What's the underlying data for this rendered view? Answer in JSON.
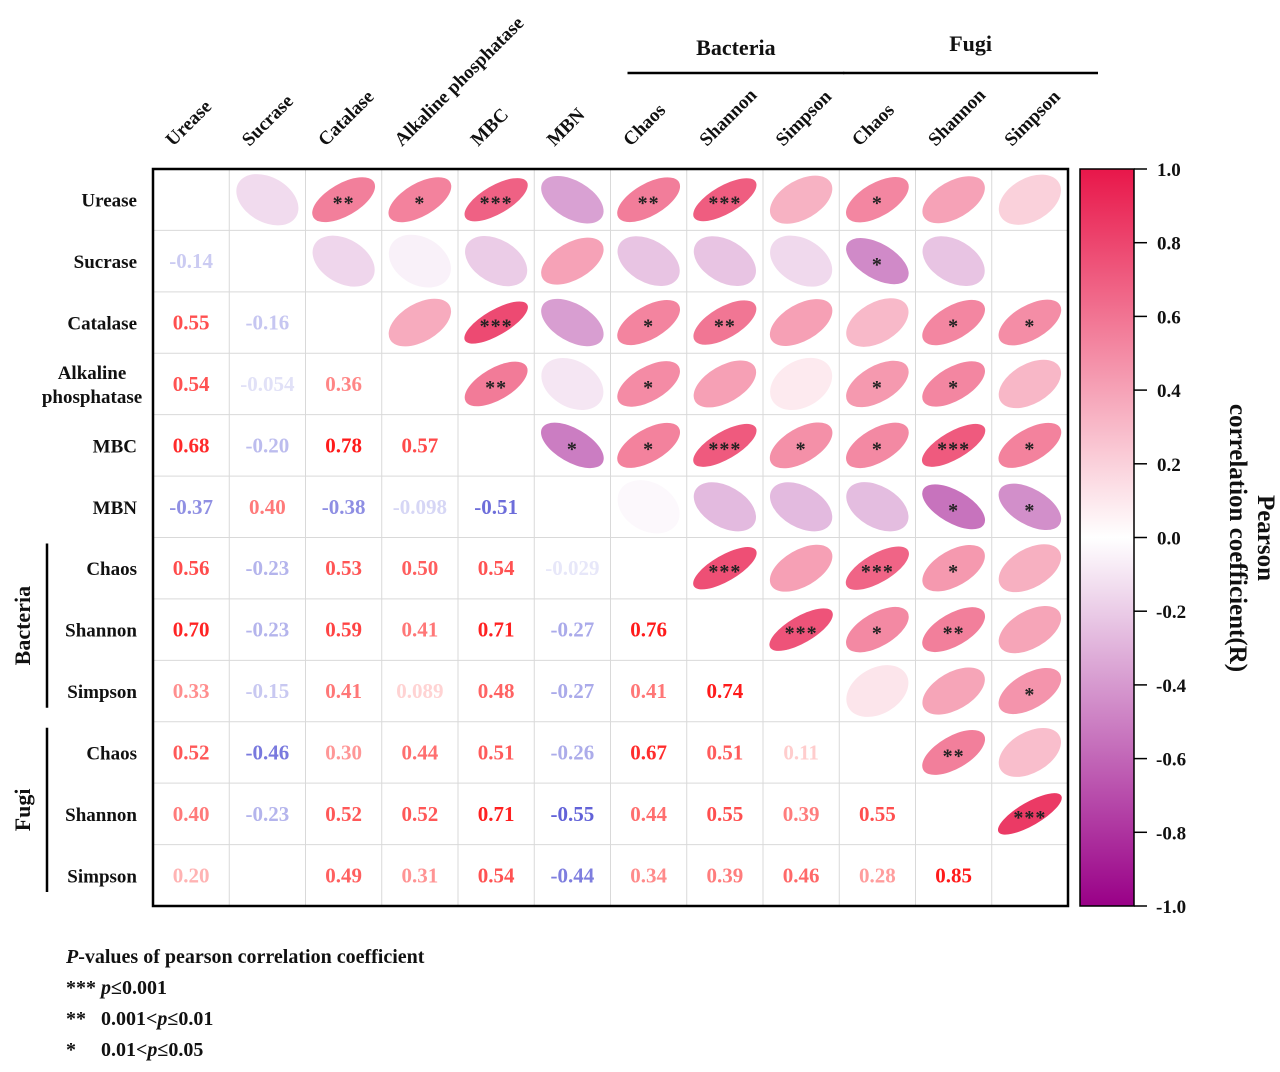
{
  "chart_data": {
    "type": "heatmap",
    "subtype": "correlation-matrix-mixed (lower: numbers, upper: ellipses + significance)",
    "variables": [
      "Urease",
      "Sucrase",
      "Catalase",
      "Alkaline phosphatase",
      "MBC",
      "MBN",
      "Chaos",
      "Shannon",
      "Simpson",
      "Chaos",
      "Shannon",
      "Simpson"
    ],
    "row_labels": [
      "Urease",
      "Sucrase",
      "Catalase",
      "Alkaline\nphosphatase",
      "MBC",
      "MBN",
      "Chaos",
      "Shannon",
      "Simpson",
      "Chaos",
      "Shannon",
      "Simpson"
    ],
    "column_groups": [
      {
        "label": "Bacteria",
        "start": 6,
        "end": 8
      },
      {
        "label": "Fugi",
        "start": 9,
        "end": 11
      }
    ],
    "lower_triangle": [
      [],
      [
        -0.14
      ],
      [
        0.55,
        -0.16
      ],
      [
        0.54,
        -0.054,
        0.36
      ],
      [
        0.68,
        -0.2,
        0.78,
        0.57
      ],
      [
        -0.37,
        0.4,
        -0.38,
        -0.098,
        -0.51
      ],
      [
        0.56,
        -0.23,
        0.53,
        0.5,
        0.54,
        -0.029
      ],
      [
        0.7,
        -0.23,
        0.59,
        0.41,
        0.71,
        -0.27,
        0.76
      ],
      [
        0.33,
        -0.15,
        0.41,
        0.089,
        0.48,
        -0.27,
        0.41,
        0.74
      ],
      [
        0.52,
        -0.46,
        0.3,
        0.44,
        0.51,
        -0.26,
        0.67,
        0.51,
        0.11
      ],
      [
        0.4,
        -0.23,
        0.52,
        0.52,
        0.71,
        -0.55,
        0.44,
        0.55,
        0.39,
        0.55
      ],
      [
        0.2,
        null,
        0.49,
        0.31,
        0.54,
        -0.44,
        0.34,
        0.39,
        0.46,
        0.28,
        0.85
      ]
    ],
    "value_labels": [
      [],
      [
        "-0.14"
      ],
      [
        "0.55",
        "-0.16"
      ],
      [
        "0.54",
        "-0.054",
        "0.36"
      ],
      [
        "0.68",
        "-0.20",
        "0.78",
        "0.57"
      ],
      [
        "-0.37",
        "0.40",
        "-0.38",
        "-0.098",
        "-0.51"
      ],
      [
        "0.56",
        "-0.23",
        "0.53",
        "0.50",
        "0.54",
        "-0.029"
      ],
      [
        "0.70",
        "-0.23",
        "0.59",
        "0.41",
        "0.71",
        "-0.27",
        "0.76"
      ],
      [
        "0.33",
        "-0.15",
        "0.41",
        "0.089",
        "0.48",
        "-0.27",
        "0.41",
        "0.74"
      ],
      [
        "0.52",
        "-0.46",
        "0.30",
        "0.44",
        "0.51",
        "-0.26",
        "0.67",
        "0.51",
        "0.11"
      ],
      [
        "0.40",
        "-0.23",
        "0.52",
        "0.52",
        "0.71",
        "-0.55",
        "0.44",
        "0.55",
        "0.39",
        "0.55"
      ],
      [
        "0.20",
        "",
        "0.49",
        "0.31",
        "0.54",
        "-0.44",
        "0.34",
        "0.39",
        "0.46",
        "0.28",
        "0.85"
      ]
    ],
    "significance_upper": {
      "0-2": "**",
      "0-3": "*",
      "0-4": "***",
      "0-6": "**",
      "0-7": "***",
      "0-9": "*",
      "1-9": "*",
      "2-4": "***",
      "2-6": "*",
      "2-7": "**",
      "2-10": "*",
      "2-11": "*",
      "3-4": "**",
      "3-6": "*",
      "3-9": "*",
      "3-10": "*",
      "4-5": "*",
      "4-6": "*",
      "4-7": "***",
      "4-8": "*",
      "4-9": "*",
      "4-10": "***",
      "4-11": "*",
      "5-10": "*",
      "5-11": "*",
      "6-7": "***",
      "6-9": "***",
      "6-10": "*",
      "7-8": "***",
      "7-9": "*",
      "7-10": "**",
      "8-11": "*",
      "9-10": "**",
      "10-11": "***"
    },
    "colorbar": {
      "title_line1": "Pearson",
      "title_line2": "correlation coefficient(R)",
      "range": [
        -1.0,
        1.0
      ],
      "ticks": [
        "1.0",
        "0.8",
        "0.6",
        "0.4",
        "0.2",
        "0.0",
        "-0.2",
        "-0.4",
        "-0.6",
        "-0.8",
        "-1.0"
      ],
      "tick_values": [
        1.0,
        0.8,
        0.6,
        0.4,
        0.2,
        0.0,
        -0.2,
        -0.4,
        -0.6,
        -0.8,
        -1.0
      ],
      "color_positive": "#e8174a",
      "color_zero": "#ffffff",
      "color_negative": "#990087",
      "placement": "right"
    },
    "number_colors": {
      "positive": "#ff1a1a",
      "negative": "#3333cc"
    }
  },
  "legend": {
    "title_italic": "P",
    "title_rest": "-values of pearson correlation coefficient",
    "items": [
      {
        "stars": "***",
        "pre": " ",
        "p": "p",
        "post": "≤0.001"
      },
      {
        "stars": "**",
        "pre": "   0.001<",
        "p": "p",
        "post": "≤0.01"
      },
      {
        "stars": "*",
        "pre": "     0.01<",
        "p": "p",
        "post": "≤0.05"
      }
    ]
  }
}
